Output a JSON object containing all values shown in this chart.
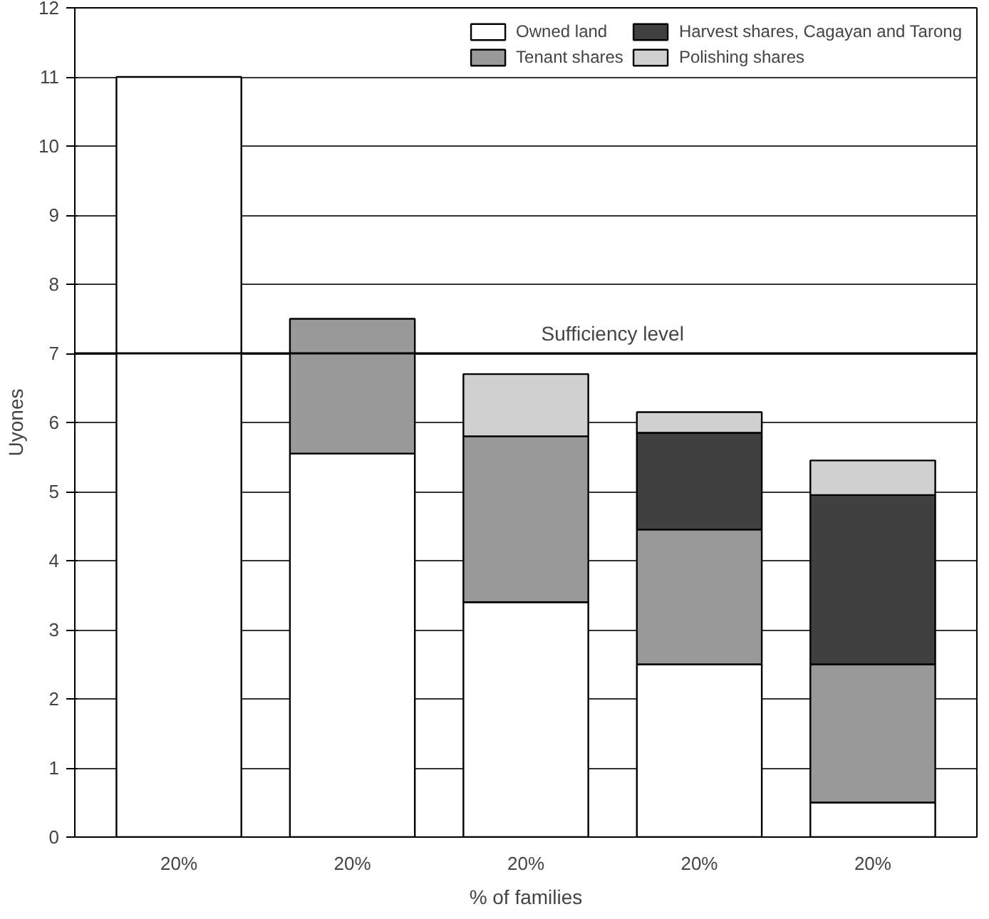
{
  "chart_data": {
    "type": "bar",
    "stacked": true,
    "xlabel": "% of families",
    "ylabel": "Uyones",
    "categories": [
      "20%",
      "20%",
      "20%",
      "20%",
      "20%"
    ],
    "series": [
      {
        "name": "Owned land",
        "color": "#ffffff",
        "values": [
          11,
          5.55,
          3.4,
          2.5,
          0.5
        ]
      },
      {
        "name": "Tenant shares",
        "color": "#999999",
        "values": [
          0,
          1.95,
          2.4,
          1.95,
          2.0
        ]
      },
      {
        "name": "Harvest shares, Cagayan and Tarong",
        "color": "#404040",
        "values": [
          0,
          0,
          0,
          1.4,
          2.45
        ]
      },
      {
        "name": "Polishing shares",
        "color": "#d0d0d0",
        "values": [
          0,
          0,
          0.9,
          0.3,
          0.5
        ]
      }
    ],
    "ylim": [
      0,
      12
    ],
    "yticks": [
      0,
      1,
      2,
      3,
      4,
      5,
      6,
      7,
      8,
      9,
      10,
      11,
      12
    ],
    "grid": "y",
    "legend": "top right",
    "ref_lines": [
      {
        "axis": "y",
        "value": 7,
        "label": "Sufficiency level"
      }
    ]
  }
}
